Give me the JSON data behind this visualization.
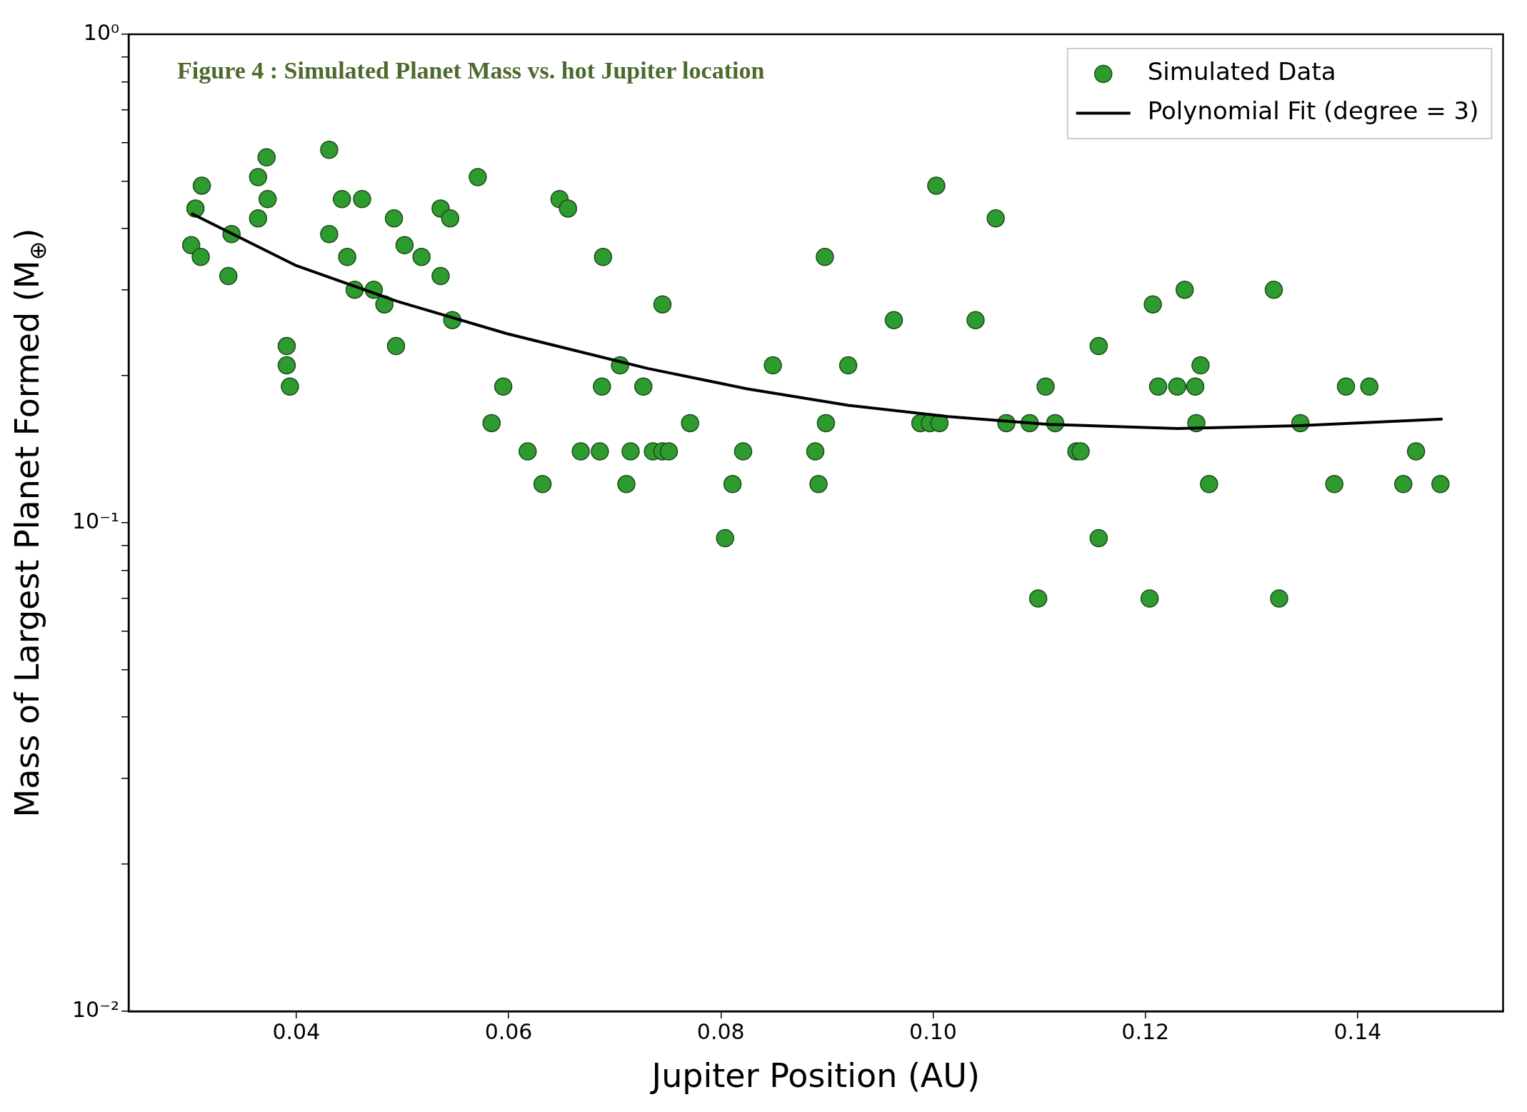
{
  "chart_data": {
    "type": "scatter",
    "title": "Figure 4 : Simulated Planet Mass vs. hot Jupiter location",
    "xlabel": "Jupiter Position (AU)",
    "ylabel": "Mass of Largest Planet Formed (M$_{⊕}$)",
    "log": "y",
    "legend": "top right",
    "xlim": [
      0.0242,
      0.1537
    ],
    "xticks": [
      0.04,
      0.06,
      0.08,
      {
        "value": 0.1,
        "label": "0.10"
      },
      0.12,
      0.14
    ],
    "ylim": [
      0.01,
      1
    ],
    "yticks": [
      {
        "value": 0.01,
        "label": "10⁻²"
      },
      {
        "value": 0.02,
        "label": null
      },
      {
        "value": 0.03,
        "label": null
      },
      {
        "value": 0.04,
        "label": null
      },
      {
        "value": 0.05,
        "label": null
      },
      {
        "value": 0.06,
        "label": null
      },
      {
        "value": 0.07,
        "label": null
      },
      {
        "value": 0.08,
        "label": null
      },
      {
        "value": 0.09,
        "label": null
      },
      {
        "value": 0.1,
        "label": "10⁻¹"
      },
      {
        "value": 0.2,
        "label": null
      },
      {
        "value": 0.3,
        "label": null
      },
      {
        "value": 0.4,
        "label": null
      },
      {
        "value": 0.5,
        "label": null
      },
      {
        "value": 0.6,
        "label": null
      },
      {
        "value": 0.7,
        "label": null
      },
      {
        "value": 0.8,
        "label": null
      },
      {
        "value": 0.9,
        "label": null
      },
      {
        "value": 1,
        "label": "10⁰"
      }
    ],
    "series": [
      {
        "name": "Simulated Data",
        "marker": "circle",
        "color": "#2e9b2e",
        "x": [
          0.0301,
          0.0305,
          0.0311,
          0.031,
          0.0336,
          0.0339,
          0.0364,
          0.0364,
          0.0372,
          0.0373,
          0.0391,
          0.0391,
          0.0394,
          0.0431,
          0.0431,
          0.0443,
          0.0448,
          0.0455,
          0.0462,
          0.0473,
          0.0483,
          0.0492,
          0.0494,
          0.0502,
          0.0518,
          0.0536,
          0.0536,
          0.0545,
          0.0547,
          0.0571,
          0.0584,
          0.0595,
          0.0618,
          0.0632,
          0.0648,
          0.0656,
          0.0668,
          0.0686,
          0.0688,
          0.0689,
          0.0705,
          0.0711,
          0.0715,
          0.0727,
          0.0736,
          0.0745,
          0.0745,
          0.0751,
          0.0771,
          0.0804,
          0.0811,
          0.0821,
          0.0849,
          0.0889,
          0.0892,
          0.0898,
          0.0899,
          0.092,
          0.0963,
          0.0988,
          0.0997,
          0.1003,
          0.1006,
          0.104,
          0.1059,
          0.1069,
          0.1091,
          0.1099,
          0.1106,
          0.1115,
          0.1135,
          0.1139,
          0.1156,
          0.1156,
          0.1204,
          0.1207,
          0.1212,
          0.123,
          0.1237,
          0.1247,
          0.1248,
          0.1252,
          0.126,
          0.1321,
          0.1326,
          0.1346,
          0.1378,
          0.1389,
          0.1411,
          0.1443,
          0.1455,
          0.1478
        ],
        "values": [
          0.37,
          0.44,
          0.49,
          0.35,
          0.32,
          0.39,
          0.51,
          0.42,
          0.56,
          0.46,
          0.21,
          0.23,
          0.19,
          0.58,
          0.39,
          0.46,
          0.35,
          0.3,
          0.46,
          0.3,
          0.28,
          0.42,
          0.23,
          0.37,
          0.35,
          0.44,
          0.32,
          0.42,
          0.26,
          0.51,
          0.16,
          0.19,
          0.14,
          0.12,
          0.46,
          0.44,
          0.14,
          0.14,
          0.19,
          0.35,
          0.21,
          0.12,
          0.14,
          0.19,
          0.14,
          0.28,
          0.14,
          0.14,
          0.16,
          0.093,
          0.12,
          0.14,
          0.21,
          0.14,
          0.12,
          0.35,
          0.16,
          0.21,
          0.26,
          0.16,
          0.16,
          0.49,
          0.16,
          0.26,
          0.42,
          0.16,
          0.16,
          0.07,
          0.19,
          0.16,
          0.14,
          0.14,
          0.23,
          0.093,
          0.07,
          0.28,
          0.19,
          0.19,
          0.3,
          0.19,
          0.16,
          0.21,
          0.12,
          0.3,
          0.07,
          0.16,
          0.12,
          0.19,
          0.19,
          0.12,
          0.14,
          0.12
        ]
      },
      {
        "name": "Polynomial Fit (degree = 3)",
        "type": "line",
        "marker": "none",
        "color": "#000000",
        "x": [
          0.0301,
          0.04,
          0.0495,
          0.0598,
          0.0731,
          0.0825,
          0.092,
          0.1014,
          0.1109,
          0.123,
          0.1345,
          0.148
        ],
        "values": [
          0.43,
          0.336,
          0.284,
          0.244,
          0.207,
          0.188,
          0.174,
          0.165,
          0.159,
          0.156,
          0.158,
          0.163
        ]
      }
    ]
  }
}
